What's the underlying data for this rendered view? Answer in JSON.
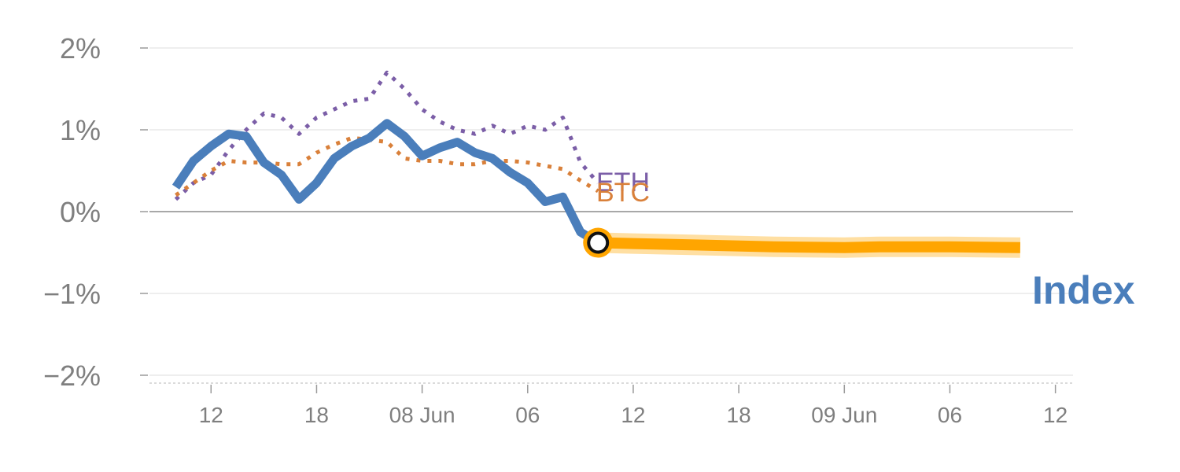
{
  "chart_data": {
    "type": "line",
    "y_unit": "%",
    "ylim": [
      -2,
      2
    ],
    "yticks": [
      {
        "value": 2,
        "label": "2%"
      },
      {
        "value": 1,
        "label": "1%"
      },
      {
        "value": 0,
        "label": "0%"
      },
      {
        "value": -1,
        "label": "−1%"
      },
      {
        "value": -2,
        "label": "−2%"
      }
    ],
    "x_unit": "hours",
    "xlim": [
      8.5,
      61
    ],
    "xticks": [
      {
        "value": 12,
        "label": "12"
      },
      {
        "value": 18,
        "label": "18"
      },
      {
        "value": 24,
        "label": "08 Jun"
      },
      {
        "value": 30,
        "label": "06"
      },
      {
        "value": 36,
        "label": "12"
      },
      {
        "value": 42,
        "label": "18"
      },
      {
        "value": 48,
        "label": "09 Jun"
      },
      {
        "value": 54,
        "label": "06"
      },
      {
        "value": 60,
        "label": "12"
      }
    ],
    "grid": true,
    "series": [
      {
        "name": "ETH",
        "color": "#7b5ea7",
        "style": "dotted",
        "x": [
          10,
          11,
          12,
          13,
          14,
          15,
          16,
          17,
          18,
          19,
          20,
          21,
          22,
          23,
          24,
          25,
          26,
          27,
          28,
          29,
          30,
          31,
          32,
          33,
          34
        ],
        "y": [
          0.15,
          0.35,
          0.45,
          0.75,
          1.0,
          1.2,
          1.15,
          0.95,
          1.15,
          1.25,
          1.35,
          1.38,
          1.7,
          1.5,
          1.25,
          1.1,
          1.0,
          0.95,
          1.05,
          0.95,
          1.05,
          1.0,
          1.15,
          0.6,
          0.35
        ]
      },
      {
        "name": "BTC",
        "color": "#d9803a",
        "style": "dotted",
        "x": [
          10,
          11,
          12,
          13,
          14,
          15,
          16,
          17,
          18,
          19,
          20,
          21,
          22,
          23,
          24,
          25,
          26,
          27,
          28,
          29,
          30,
          31,
          32,
          33,
          34
        ],
        "y": [
          0.2,
          0.35,
          0.5,
          0.62,
          0.6,
          0.6,
          0.58,
          0.58,
          0.72,
          0.82,
          0.9,
          0.88,
          0.85,
          0.65,
          0.62,
          0.62,
          0.58,
          0.58,
          0.62,
          0.62,
          0.6,
          0.56,
          0.52,
          0.38,
          0.25
        ]
      },
      {
        "name": "Index",
        "color": "#4a7ebb",
        "style": "solid",
        "x": [
          10,
          11,
          12,
          13,
          14,
          15,
          16,
          17,
          18,
          19,
          20,
          21,
          22,
          23,
          24,
          25,
          26,
          27,
          28,
          29,
          30,
          31,
          32,
          33,
          34
        ],
        "y": [
          0.3,
          0.62,
          0.8,
          0.95,
          0.92,
          0.6,
          0.45,
          0.15,
          0.35,
          0.65,
          0.8,
          0.9,
          1.08,
          0.92,
          0.68,
          0.78,
          0.85,
          0.72,
          0.65,
          0.48,
          0.35,
          0.12,
          0.18,
          -0.25,
          -0.38
        ]
      },
      {
        "name": "forecast",
        "color": "#ffa500",
        "style": "band",
        "x": [
          34,
          36,
          40,
          44,
          48,
          50,
          54,
          58
        ],
        "y": [
          -0.38,
          -0.39,
          -0.41,
          -0.43,
          -0.44,
          -0.43,
          -0.43,
          -0.44
        ]
      }
    ],
    "marker": {
      "x": 34,
      "y": -0.38
    },
    "labels": [
      {
        "text": "ETH",
        "series": "ETH"
      },
      {
        "text": "BTC",
        "series": "BTC"
      },
      {
        "text": "Index",
        "series": "Index"
      }
    ]
  }
}
